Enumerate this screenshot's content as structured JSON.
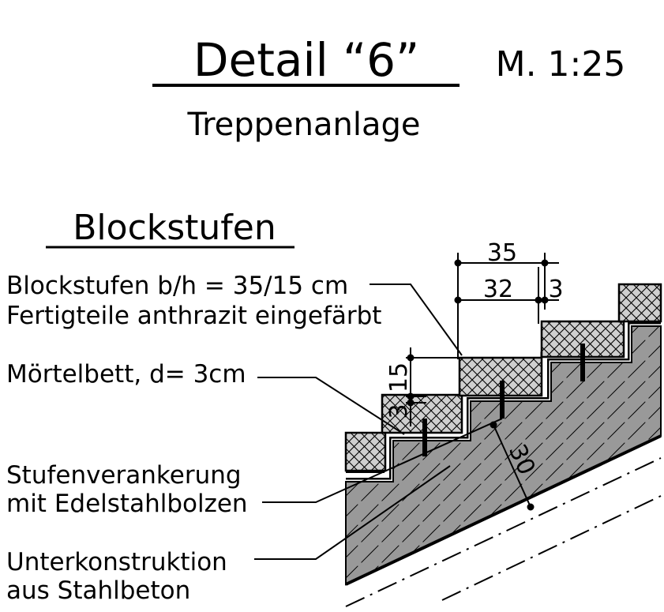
{
  "header": {
    "title": "Detail “6”",
    "scale": "M. 1:25",
    "subtitle": "Treppenanlage"
  },
  "section_heading": "Blockstufen",
  "labels": {
    "blockstufen_line1": "Blockstufen b/h = 35/15 cm",
    "blockstufen_line2": "Fertigteile anthrazit eingefärbt",
    "moertelbett": "Mörtelbett, d= 3cm",
    "verankerung_line1": "Stufenverankerung",
    "verankerung_line2": "mit Edelstahlbolzen",
    "unterkonstruktion_line1": "Unterkonstruktion",
    "unterkonstruktion_line2": "aus Stahlbeton"
  },
  "dimensions": {
    "tread_total": "35",
    "tread_net": "32",
    "tread_joint": "3",
    "riser": "15",
    "bed_thickness": "3",
    "slab_thickness": "30"
  },
  "colors": {
    "ink": "#000000",
    "concrete_fill": "#999999",
    "block_fill": "#cfcfcf"
  }
}
